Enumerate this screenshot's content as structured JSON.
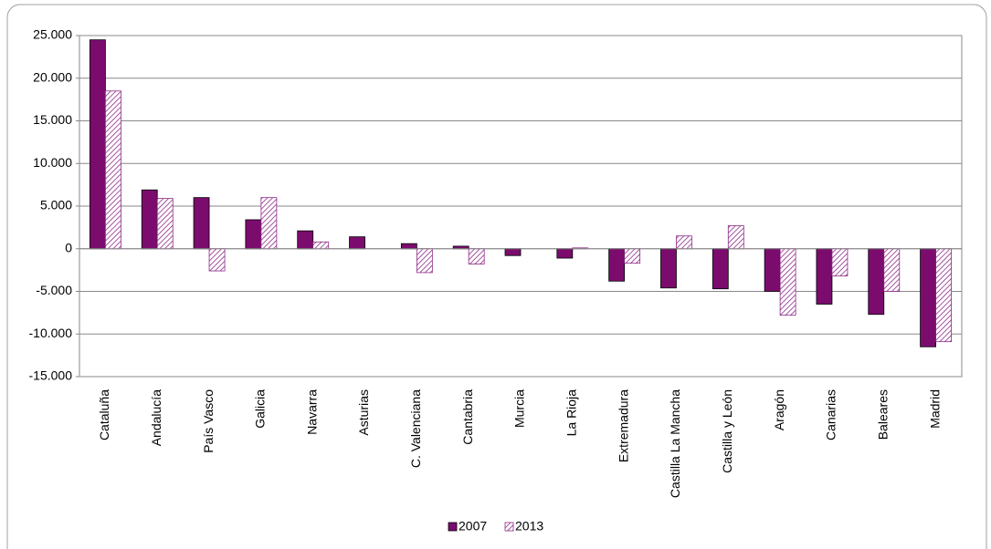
{
  "chart_data": {
    "type": "bar",
    "categories": [
      "Cataluña",
      "Andalucía",
      "País Vasco",
      "Galicia",
      "Navarra",
      "Asturias",
      "C. Valenciana",
      "Cantabria",
      "Murcia",
      "La Rioja",
      "Extremadura",
      "Castilla La Mancha",
      "Castilla y León",
      "Aragón",
      "Canarias",
      "Baleares",
      "Madrid"
    ],
    "series": [
      {
        "name": "2007",
        "color": "#7b0c6e",
        "pattern": "solid",
        "values": [
          24500,
          6900,
          6000,
          3400,
          2100,
          1400,
          600,
          300,
          -800,
          -1100,
          -3800,
          -4600,
          -4700,
          -5000,
          -6500,
          -7700,
          -11500
        ]
      },
      {
        "name": "2013",
        "color": "#8e2a86",
        "pattern": "hatch",
        "values": [
          18500,
          5900,
          -2600,
          6000,
          800,
          0,
          -2800,
          -1800,
          0,
          100,
          -1700,
          1500,
          2700,
          -7800,
          -3200,
          -5000,
          -10900
        ]
      }
    ],
    "ylim": [
      -15000,
      25000
    ],
    "yticks": [
      {
        "value": -15000,
        "label": "-15.000"
      },
      {
        "value": -10000,
        "label": "-10.000"
      },
      {
        "value": -5000,
        "label": "-5.000"
      },
      0,
      {
        "value": 5000,
        "label": "5.000"
      },
      {
        "value": 10000,
        "label": "10.000"
      },
      {
        "value": 15000,
        "label": "15.000"
      },
      {
        "value": 20000,
        "label": "20.000"
      },
      {
        "value": 25000,
        "label": "25.000"
      }
    ],
    "grid": true
  }
}
